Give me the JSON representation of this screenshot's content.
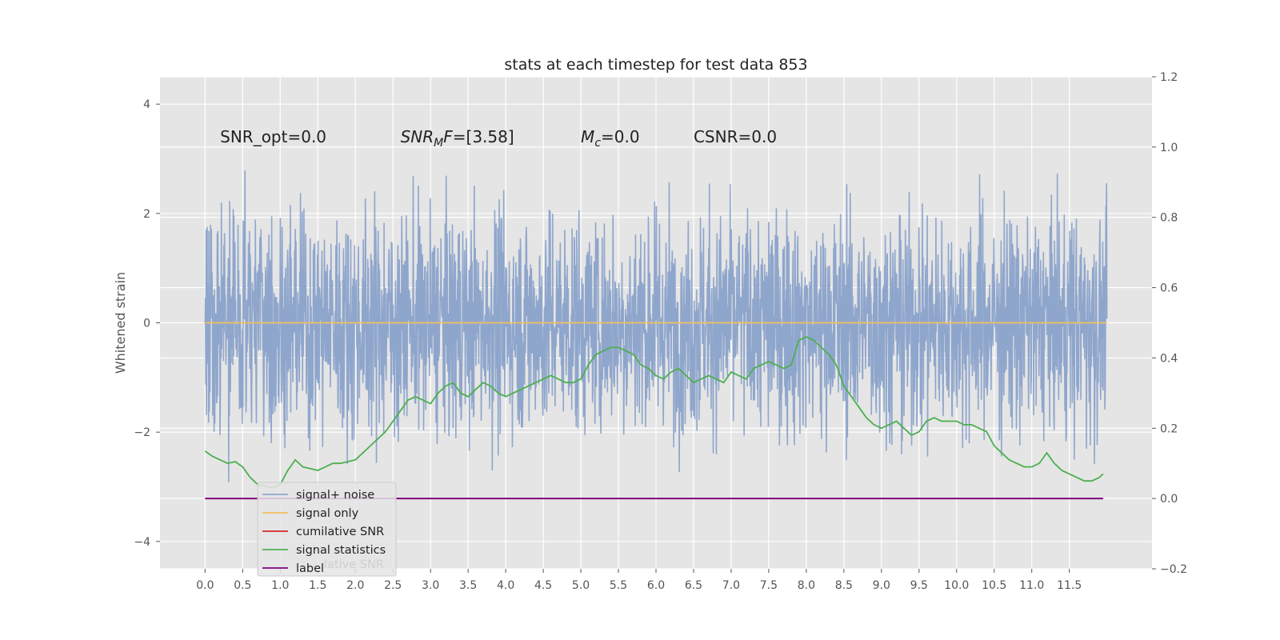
{
  "chart_data": {
    "type": "line",
    "title": "stats at each timestep for test data 853",
    "ylabel": "Whitened strain",
    "xlabel": "",
    "xlim": [
      -0.6,
      12.6
    ],
    "ylim": [
      -4.5,
      4.5
    ],
    "y2lim": [
      -0.2,
      1.2
    ],
    "grid": true,
    "background": "#e5e5e5",
    "x_ticks": [
      "0.0",
      "0.5",
      "1.0",
      "1.5",
      "2.0",
      "2.5",
      "3.0",
      "3.5",
      "4.0",
      "4.5",
      "5.0",
      "5.5",
      "6.0",
      "6.5",
      "7.0",
      "7.5",
      "8.0",
      "8.5",
      "9.0",
      "9.5",
      "10.0",
      "10.5",
      "11.0",
      "11.5"
    ],
    "y_ticks": [
      "4",
      "2",
      "0",
      "−2",
      "−4"
    ],
    "y2_ticks": [
      "1.2",
      "1.0",
      "0.8",
      "0.6",
      "0.4",
      "0.2",
      "0.0",
      "−0.2"
    ],
    "annotations": [
      {
        "parts": [
          {
            "t": "SNR_opt=0.0",
            "i": false
          }
        ],
        "x": 0.2,
        "y": 3.3
      },
      {
        "parts": [
          {
            "t": "SNR",
            "i": true
          },
          {
            "t": "M",
            "i": true,
            "sub": true
          },
          {
            "t": "F",
            "i": true
          },
          {
            "t": "=[3.58]",
            "i": false
          }
        ],
        "x": 2.6,
        "y": 3.3
      },
      {
        "parts": [
          {
            "t": "M",
            "i": true
          },
          {
            "t": "c",
            "i": true,
            "sub": true
          },
          {
            "t": "=0.0",
            "i": false
          }
        ],
        "x": 5.0,
        "y": 3.3
      },
      {
        "parts": [
          {
            "t": "CSNR=0.0",
            "i": false
          }
        ],
        "x": 6.5,
        "y": 3.3
      }
    ],
    "series": [
      {
        "name": "signal+ noise",
        "color": "#8fa6cc",
        "axis": "left",
        "kind": "noise",
        "x_range": [
          0.0,
          12.0
        ],
        "amplitude_std": 1.0
      },
      {
        "name": "signal only",
        "color": "#f0c060",
        "axis": "left",
        "x": [
          0.0,
          12.0
        ],
        "y": [
          0.0,
          0.0
        ]
      },
      {
        "name": "cumilative SNR",
        "color": "#d62728",
        "axis": "right",
        "x": [],
        "y": []
      },
      {
        "name": "signal statistics",
        "color": "#4caf50",
        "axis": "right",
        "x": [
          0.0,
          0.1,
          0.2,
          0.3,
          0.4,
          0.5,
          0.6,
          0.7,
          0.8,
          0.9,
          1.0,
          1.1,
          1.2,
          1.3,
          1.4,
          1.5,
          1.6,
          1.7,
          1.8,
          1.9,
          2.0,
          2.1,
          2.2,
          2.3,
          2.4,
          2.5,
          2.6,
          2.7,
          2.8,
          2.9,
          3.0,
          3.1,
          3.2,
          3.3,
          3.4,
          3.5,
          3.6,
          3.7,
          3.8,
          3.9,
          4.0,
          4.1,
          4.2,
          4.3,
          4.4,
          4.5,
          4.6,
          4.7,
          4.8,
          4.9,
          5.0,
          5.1,
          5.2,
          5.3,
          5.4,
          5.5,
          5.6,
          5.7,
          5.8,
          5.9,
          6.0,
          6.1,
          6.2,
          6.3,
          6.4,
          6.5,
          6.6,
          6.7,
          6.8,
          6.9,
          7.0,
          7.1,
          7.2,
          7.3,
          7.4,
          7.5,
          7.6,
          7.7,
          7.8,
          7.9,
          8.0,
          8.1,
          8.2,
          8.3,
          8.4,
          8.5,
          8.6,
          8.7,
          8.8,
          8.9,
          9.0,
          9.1,
          9.2,
          9.3,
          9.4,
          9.5,
          9.6,
          9.7,
          9.8,
          9.9,
          10.0,
          10.1,
          10.2,
          10.3,
          10.4,
          10.5,
          10.6,
          10.7,
          10.8,
          10.9,
          11.0,
          11.1,
          11.2,
          11.3,
          11.4,
          11.5,
          11.6,
          11.7,
          11.8,
          11.9,
          11.95
        ],
        "y": [
          0.135,
          0.12,
          0.11,
          0.1,
          0.105,
          0.09,
          0.06,
          0.04,
          0.035,
          0.03,
          0.04,
          0.08,
          0.11,
          0.09,
          0.085,
          0.08,
          0.09,
          0.1,
          0.1,
          0.105,
          0.11,
          0.13,
          0.15,
          0.17,
          0.19,
          0.22,
          0.25,
          0.28,
          0.29,
          0.28,
          0.27,
          0.3,
          0.32,
          0.33,
          0.3,
          0.29,
          0.31,
          0.33,
          0.32,
          0.3,
          0.29,
          0.3,
          0.31,
          0.32,
          0.33,
          0.34,
          0.35,
          0.34,
          0.33,
          0.33,
          0.34,
          0.38,
          0.41,
          0.42,
          0.43,
          0.43,
          0.42,
          0.41,
          0.38,
          0.37,
          0.35,
          0.34,
          0.36,
          0.37,
          0.35,
          0.33,
          0.34,
          0.35,
          0.34,
          0.33,
          0.36,
          0.35,
          0.34,
          0.37,
          0.38,
          0.39,
          0.38,
          0.37,
          0.38,
          0.45,
          0.46,
          0.45,
          0.43,
          0.41,
          0.38,
          0.32,
          0.29,
          0.26,
          0.23,
          0.21,
          0.2,
          0.21,
          0.22,
          0.2,
          0.18,
          0.19,
          0.22,
          0.23,
          0.22,
          0.22,
          0.22,
          0.21,
          0.21,
          0.2,
          0.19,
          0.15,
          0.13,
          0.11,
          0.1,
          0.09,
          0.09,
          0.1,
          0.13,
          0.1,
          0.08,
          0.07,
          0.06,
          0.05,
          0.05,
          0.06,
          0.07
        ]
      },
      {
        "name": "label",
        "color": "#800080",
        "axis": "right",
        "x": [
          0.0,
          11.95
        ],
        "y": [
          0.0,
          0.0
        ]
      }
    ],
    "legend": {
      "position": "lower-left",
      "ghost_text": "lative SNR"
    }
  }
}
